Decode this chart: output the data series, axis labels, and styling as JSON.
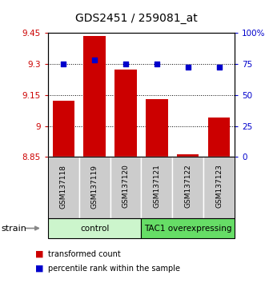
{
  "title": "GDS2451 / 259081_at",
  "samples": [
    "GSM137118",
    "GSM137119",
    "GSM137120",
    "GSM137121",
    "GSM137122",
    "GSM137123"
  ],
  "red_values": [
    9.12,
    9.435,
    9.27,
    9.13,
    8.865,
    9.04
  ],
  "blue_values": [
    75,
    78,
    75,
    75,
    72,
    72
  ],
  "ylim_left": [
    8.85,
    9.45
  ],
  "ylim_right": [
    0,
    100
  ],
  "yticks_left": [
    8.85,
    9.0,
    9.15,
    9.3,
    9.45
  ],
  "ytick_labels_left": [
    "8.85",
    "9",
    "9.15",
    "9.3",
    "9.45"
  ],
  "yticks_right": [
    0,
    25,
    50,
    75,
    100
  ],
  "ytick_labels_right": [
    "0",
    "25",
    "50",
    "75",
    "100%"
  ],
  "grid_lines": [
    9.0,
    9.15,
    9.3
  ],
  "groups": [
    {
      "label": "control",
      "indices": [
        0,
        1,
        2
      ],
      "color": "#ccf5cc"
    },
    {
      "label": "TAC1 overexpressing",
      "indices": [
        3,
        4,
        5
      ],
      "color": "#66dd66"
    }
  ],
  "bar_color": "#cc0000",
  "dot_color": "#0000cc",
  "bar_bottom": 8.85,
  "left_tick_color": "#cc0000",
  "right_tick_color": "#0000cc",
  "legend_red": "transformed count",
  "legend_blue": "percentile rank within the sample",
  "strain_label": "strain",
  "sample_box_color": "#cccccc",
  "bar_width": 0.7
}
